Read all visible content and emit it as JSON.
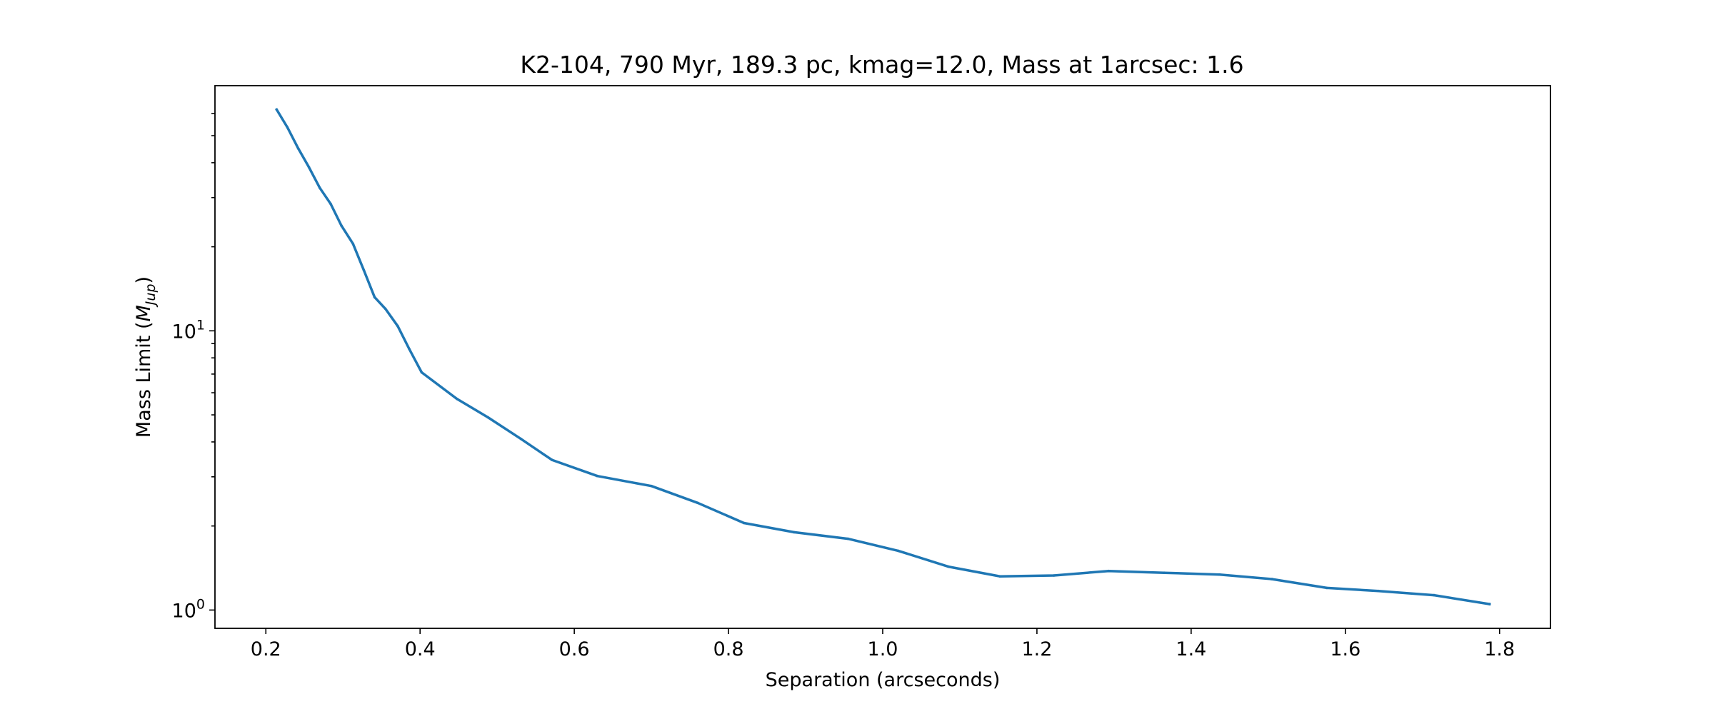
{
  "chart_data": {
    "type": "line",
    "title": "K2-104, 790 Myr, 189.3 pc, kmag=12.0, Mass at 1arcsec: 1.6",
    "xlabel": "Separation (arcseconds)",
    "ylabel_prefix": "Mass Limit (",
    "ylabel_symbol": "M",
    "ylabel_subscript": "Jup",
    "ylabel_suffix": ")",
    "y_scale": "log",
    "xlim": [
      0.134,
      1.866
    ],
    "ylim": [
      0.86,
      75.5
    ],
    "x_ticks": [
      0.2,
      0.4,
      0.6,
      0.8,
      1.0,
      1.2,
      1.4,
      1.6,
      1.8
    ],
    "x_tick_labels": [
      "0.2",
      "0.4",
      "0.6",
      "0.8",
      "1.0",
      "1.2",
      "1.4",
      "1.6",
      "1.8"
    ],
    "y_major_ticks": [
      {
        "value": 1,
        "base": "10",
        "exp": "0"
      },
      {
        "value": 10,
        "base": "10",
        "exp": "1"
      }
    ],
    "y_minor_ticks": [
      2,
      3,
      4,
      5,
      6,
      7,
      8,
      9,
      20,
      30,
      40,
      50,
      60
    ],
    "grid": false,
    "series": [
      {
        "color": "#1f77b4",
        "x": [
          0.214,
          0.228,
          0.242,
          0.256,
          0.27,
          0.284,
          0.298,
          0.313,
          0.327,
          0.341,
          0.355,
          0.371,
          0.386,
          0.402,
          0.448,
          0.488,
          0.531,
          0.571,
          0.63,
          0.7,
          0.76,
          0.82,
          0.885,
          0.955,
          1.02,
          1.085,
          1.152,
          1.222,
          1.293,
          1.365,
          1.437,
          1.505,
          1.576,
          1.643,
          1.715,
          1.787
        ],
        "y": [
          62.0,
          53.5,
          45.0,
          38.5,
          32.5,
          28.5,
          23.8,
          20.5,
          16.5,
          13.2,
          12.0,
          10.4,
          8.6,
          7.1,
          5.7,
          4.9,
          4.1,
          3.45,
          3.02,
          2.78,
          2.42,
          2.05,
          1.9,
          1.8,
          1.63,
          1.43,
          1.32,
          1.33,
          1.38,
          1.36,
          1.34,
          1.29,
          1.2,
          1.17,
          1.13,
          1.05
        ]
      }
    ]
  }
}
